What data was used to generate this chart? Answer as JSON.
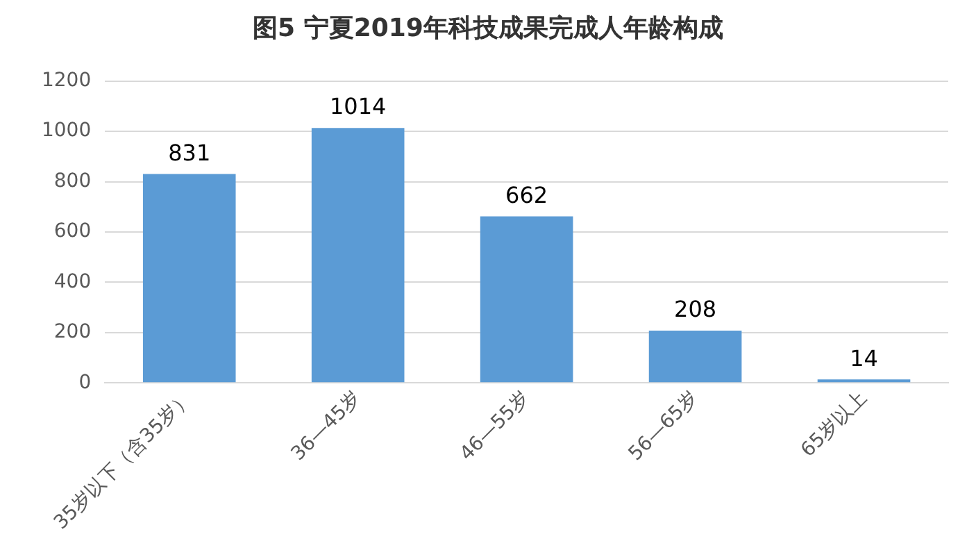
{
  "chart_data": {
    "type": "bar",
    "title": "图5  宁夏2019年科技成果完成人年龄构成",
    "categories": [
      "35岁以下（含35岁）",
      "36—45岁",
      "46—55岁",
      "56—65岁",
      "65岁以上"
    ],
    "values": [
      831,
      1014,
      662,
      208,
      14
    ],
    "color": "#5b9bd5",
    "ylim": [
      0,
      1200
    ],
    "yticks": [
      0,
      200,
      400,
      600,
      800,
      1000,
      1200
    ],
    "grid": "y",
    "data_labels": true,
    "legend": false
  }
}
